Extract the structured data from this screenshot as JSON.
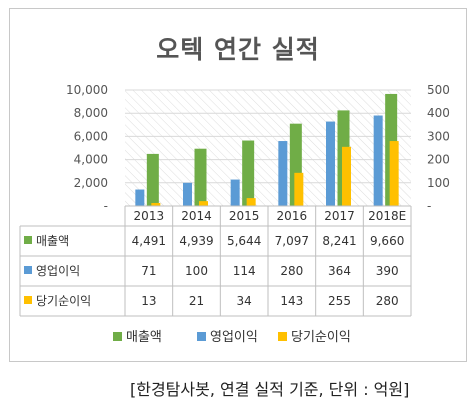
{
  "title": "오텍 연간 실적",
  "source_note": "[한경탐사봇, 연결 실적 기준, 단위 : 억원]",
  "chart_data": {
    "type": "bar",
    "categories": [
      "2013",
      "2014",
      "2015",
      "2016",
      "2017",
      "2018E"
    ],
    "series": [
      {
        "name": "매출액",
        "axis": "left",
        "color": "#70ad47",
        "values": [
          4491,
          4939,
          5644,
          7097,
          8241,
          9660
        ],
        "labels": [
          "4,491",
          "4,939",
          "5,644",
          "7,097",
          "8,241",
          "9,660"
        ]
      },
      {
        "name": "영업이익",
        "axis": "right",
        "color": "#5b9bd5",
        "values": [
          71,
          100,
          114,
          280,
          364,
          390
        ],
        "labels": [
          "71",
          "100",
          "114",
          "280",
          "364",
          "390"
        ]
      },
      {
        "name": "당기순이익",
        "axis": "right",
        "color": "#ffc000",
        "values": [
          13,
          21,
          34,
          143,
          255,
          280
        ],
        "labels": [
          "13",
          "21",
          "34",
          "143",
          "255",
          "280"
        ]
      }
    ],
    "left_axis": {
      "ylim": [
        0,
        10000
      ],
      "ticks": [
        "-",
        "2,000",
        "4,000",
        "6,000",
        "8,000",
        "10,000"
      ]
    },
    "right_axis": {
      "ylim": [
        0,
        500
      ],
      "ticks": [
        "-",
        "100",
        "200",
        "300",
        "400",
        "500"
      ]
    },
    "grid": "hatched background",
    "legend": "bottom",
    "data_table": true
  }
}
